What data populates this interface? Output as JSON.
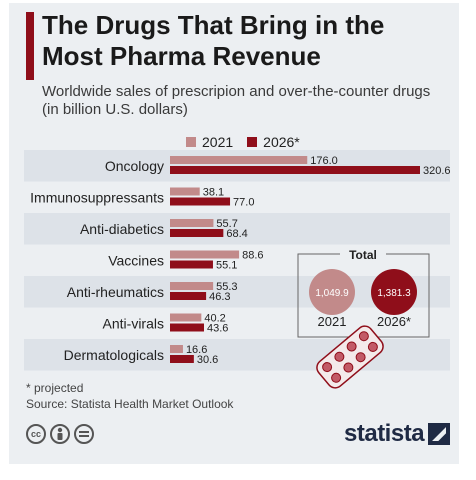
{
  "title": "The Drugs That Bring in the\nMost Pharma Revenue",
  "subtitle": "Worldwide sales of prescripion and over-the-counter drugs\n(in billion U.S. dollars)",
  "legend": [
    {
      "label": "2021",
      "color": "#c28a8a"
    },
    {
      "label": "2026*",
      "color": "#8f0e1a"
    }
  ],
  "total": {
    "label": "Total",
    "items": [
      {
        "year": "2021",
        "value": "1,049.9",
        "color": "#c28a8a"
      },
      {
        "year": "2026*",
        "value": "1,381.3",
        "color": "#8f0e1a"
      }
    ]
  },
  "footnote": "* projected",
  "source": "Source: Statista Health Market Outlook",
  "brand": "statista",
  "license_icons": [
    "cc-icon",
    "attribution-icon",
    "no-derivatives-icon"
  ],
  "chart_data": {
    "type": "bar",
    "orientation": "horizontal",
    "categories": [
      "Oncology",
      "Immunosuppressants",
      "Anti-diabetics",
      "Vaccines",
      "Anti-rheumatics",
      "Anti-virals",
      "Dermatologicals"
    ],
    "series": [
      {
        "name": "2021",
        "values": [
          176.0,
          38.1,
          55.7,
          88.6,
          55.3,
          40.2,
          16.6
        ],
        "labels": [
          "176.0",
          "38.1",
          "55.7",
          "88.6",
          "55.3",
          "40.2",
          "16.6"
        ],
        "color": "#c28a8a"
      },
      {
        "name": "2026*",
        "values": [
          320.6,
          77.0,
          68.4,
          55.1,
          46.3,
          43.6,
          30.6
        ],
        "labels": [
          "320.6",
          "77.0",
          "68.4",
          "55.1",
          "46.3",
          "43.6",
          "30.6"
        ],
        "color": "#8f0e1a"
      }
    ],
    "xlim": [
      0,
      320.6
    ],
    "grid": false,
    "legend_position": "top"
  }
}
